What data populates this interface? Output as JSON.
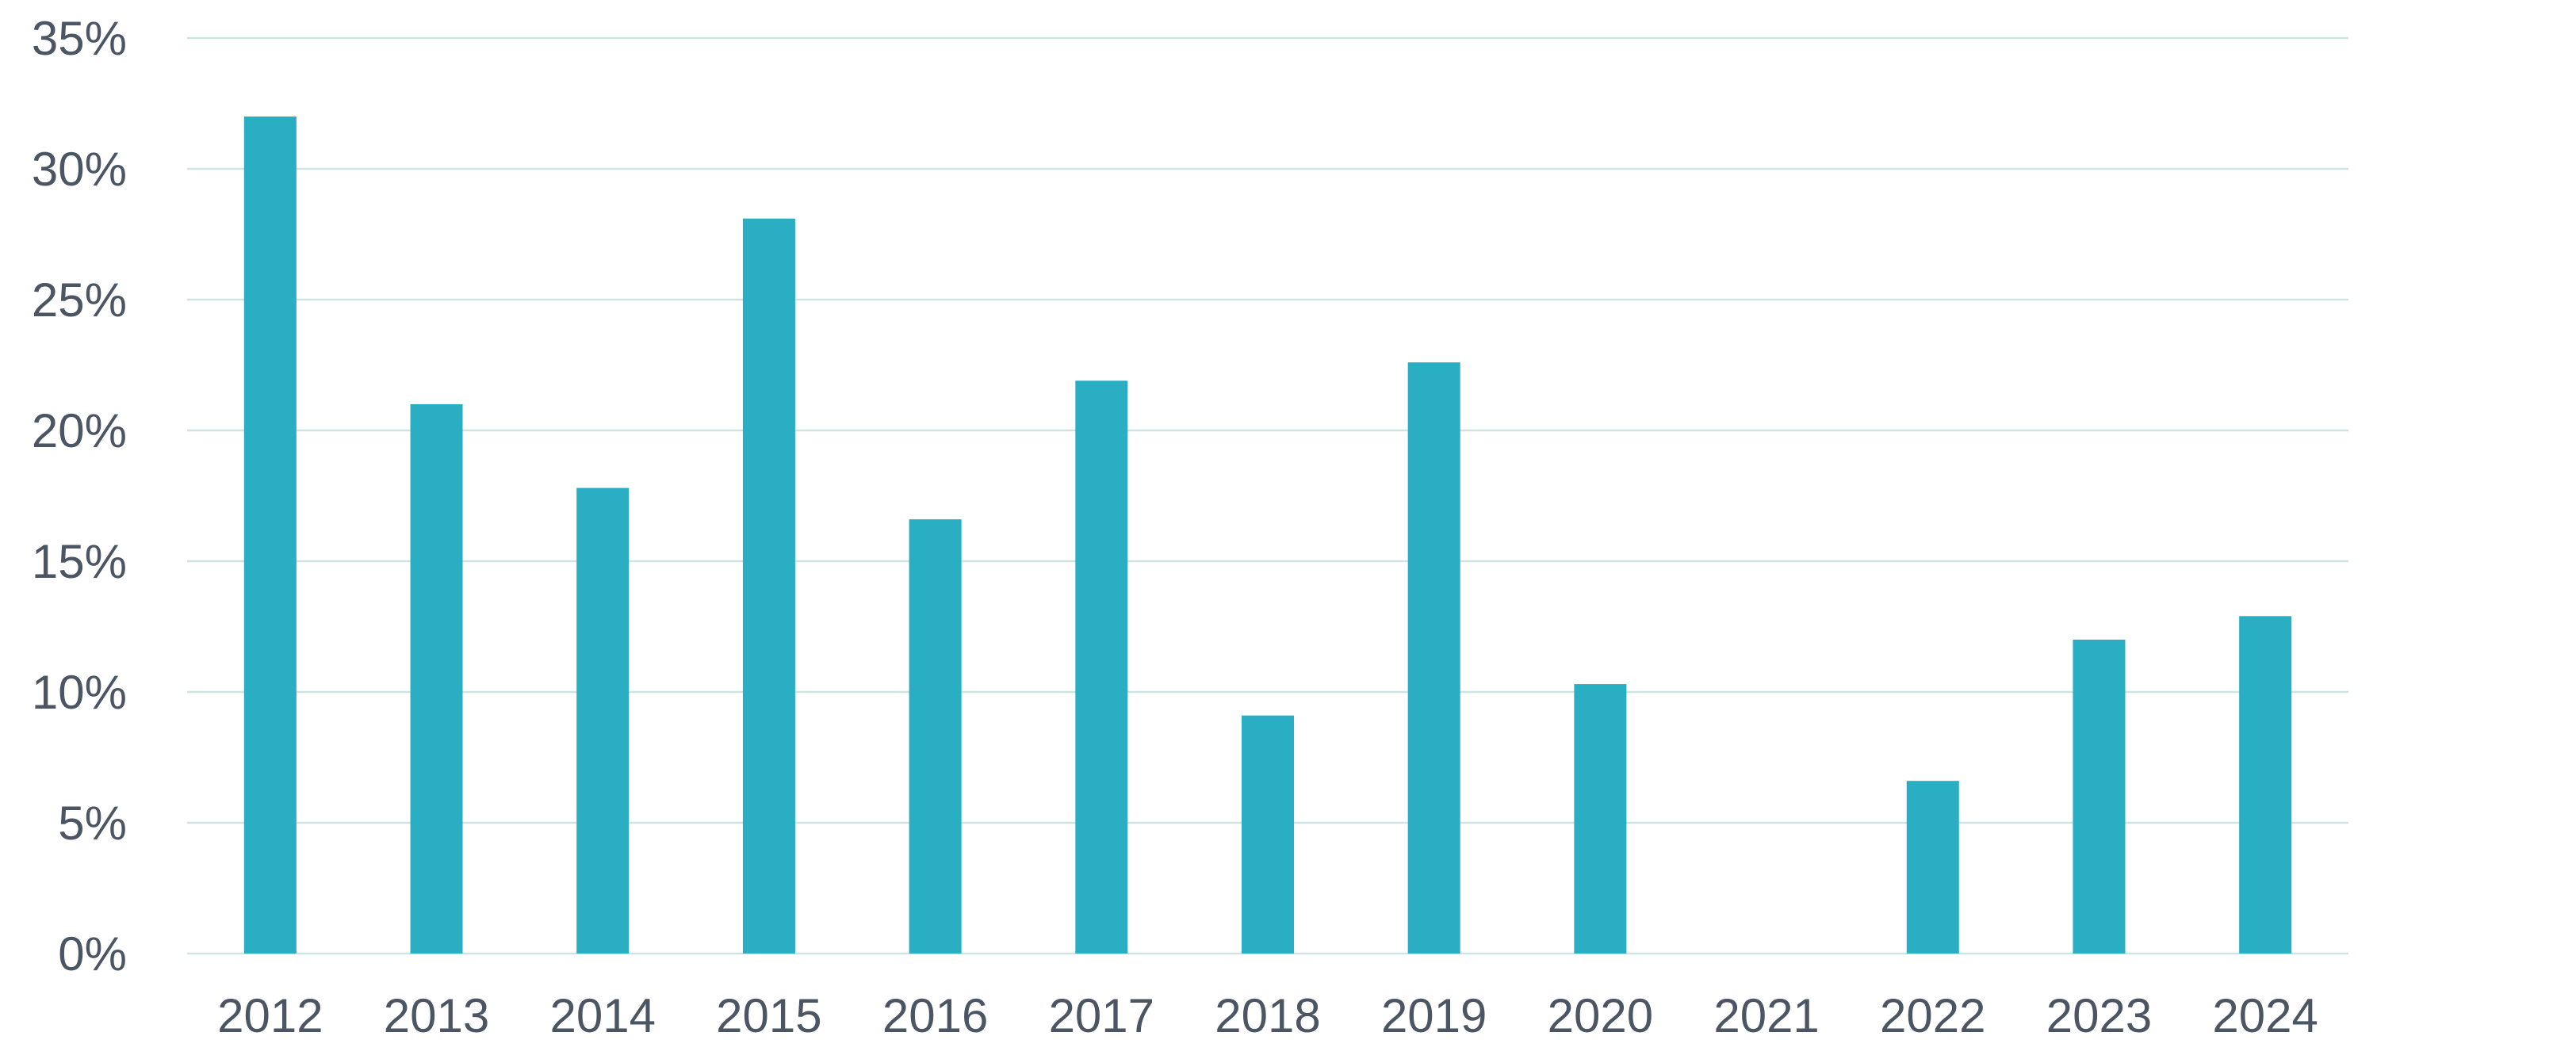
{
  "chart_data": {
    "type": "bar",
    "title": "",
    "xlabel": "",
    "ylabel": "",
    "categories": [
      "2012",
      "2013",
      "2014",
      "2015",
      "2016",
      "2017",
      "2018",
      "2019",
      "2020",
      "2021",
      "2022",
      "2023",
      "2024"
    ],
    "values": [
      32,
      21,
      17.8,
      28.1,
      16.6,
      21.9,
      9.1,
      22.6,
      10.3,
      null,
      6.6,
      12,
      12.9
    ],
    "ylim": [
      0,
      35
    ],
    "yticks": [
      0,
      5,
      10,
      15,
      20,
      25,
      30,
      35
    ],
    "ytick_labels": [
      "0%",
      "5%",
      "10%",
      "15%",
      "20%",
      "25%",
      "30%",
      "35%"
    ],
    "grid": true,
    "legend": "none",
    "colors": {
      "bar": "#2aaec3",
      "grid": "#cfe3e3",
      "text": "#4b5563"
    }
  }
}
